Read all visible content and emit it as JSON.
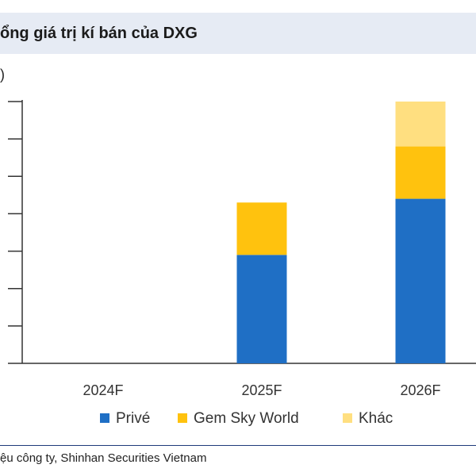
{
  "chart_data": {
    "type": "bar",
    "stacked": true,
    "title": "ổng giá trị kí bán của DXG",
    "ylabel": ")",
    "categories": [
      "2024F",
      "2025F",
      "2026F"
    ],
    "series": [
      {
        "name": "Privé",
        "color": "#1f6fc5",
        "values": [
          0,
          2.9,
          4.4
        ]
      },
      {
        "name": "Gem Sky World",
        "color": "#ffc20e",
        "values": [
          0,
          1.4,
          1.4
        ]
      },
      {
        "name": "Khác",
        "color": "#ffdf80",
        "values": [
          0,
          0,
          1.2
        ]
      }
    ],
    "ylim": [
      0,
      7
    ],
    "y_tick_count": 8,
    "grid": false,
    "legend": "bottom"
  },
  "source": "ệu công ty, Shinhan Securities Vietnam"
}
